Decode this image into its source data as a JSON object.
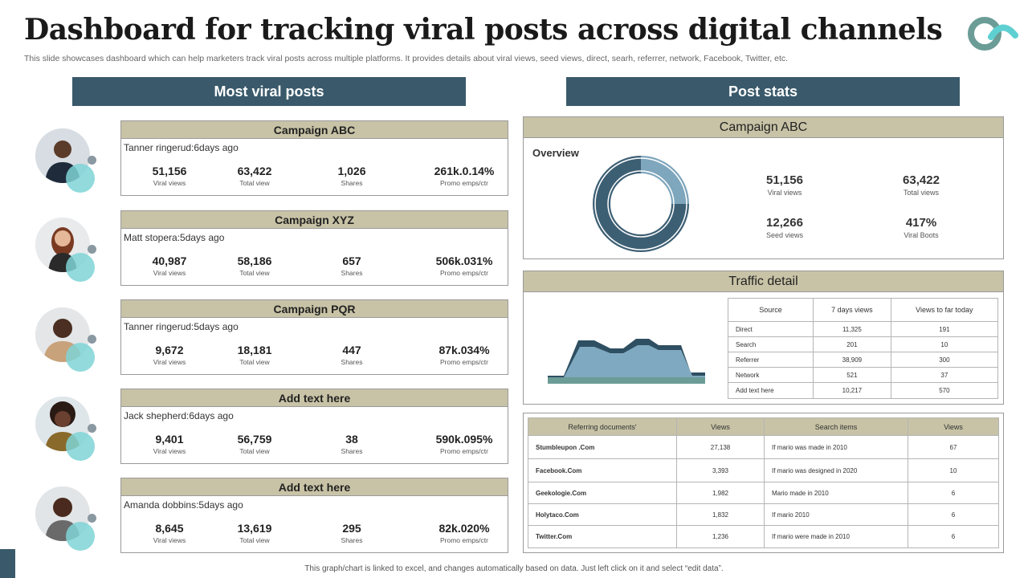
{
  "title": "Dashboard for tracking viral posts across digital channels",
  "subtitle": "This slide showcases dashboard which can help marketers track viral posts across multiple platforms. It provides details about viral views, seed views, direct, searh, referrer, network,  Facebook, Twitter, etc.",
  "colors": {
    "accent": "#3a5a6b",
    "card_header": "#c8c3a6",
    "teal": "#7fd3d6",
    "donut_dark": "#3d5f74",
    "donut_light": "#7ea6bd"
  },
  "left_section": {
    "heading": "Most viral posts"
  },
  "right_section": {
    "heading": "Post stats"
  },
  "metric_labels": [
    "Viral views",
    "Total view",
    "Shares",
    "Promo emps/ctr"
  ],
  "posts": [
    {
      "campaign": "Campaign ABC",
      "author": "Tanner ringerud:6days ago",
      "viral_views": "51,156",
      "total_view": "63,422",
      "shares": "1,026",
      "promo": "261k.0.14%"
    },
    {
      "campaign": "Campaign XYZ",
      "author": "Matt stopera:5days ago",
      "viral_views": "40,987",
      "total_view": "58,186",
      "shares": "657",
      "promo": "506k.031%"
    },
    {
      "campaign": "Campaign PQR",
      "author": "Tanner ringerud:5days ago",
      "viral_views": "9,672",
      "total_view": "18,181",
      "shares": "447",
      "promo": "87k.034%"
    },
    {
      "campaign": "Add text here",
      "author": "Jack shepherd:6days ago",
      "viral_views": "9,401",
      "total_view": "56,759",
      "shares": "38",
      "promo": "590k.095%"
    },
    {
      "campaign": "Add text here",
      "author": "Amanda dobbins:5days ago",
      "viral_views": "8,645",
      "total_view": "13,619",
      "shares": "295",
      "promo": "82k.020%"
    }
  ],
  "post_stats": {
    "campaign": "Campaign ABC",
    "overview_label": "Overview",
    "donut_split": [
      0.75,
      0.25
    ],
    "stats": [
      {
        "value": "51,156",
        "label": "Viral views"
      },
      {
        "value": "63,422",
        "label": "Total views"
      },
      {
        "value": "12,266",
        "label": "Seed views"
      },
      {
        "value": "417%",
        "label": "Viral Boots"
      }
    ]
  },
  "traffic": {
    "heading": "Traffic detail",
    "columns": [
      "Source",
      "7 days views",
      "Views to far today"
    ],
    "rows": [
      [
        "Direct",
        "11,325",
        "191"
      ],
      [
        "Search",
        "201",
        "10"
      ],
      [
        "Referrer",
        "38,909",
        "300"
      ],
      [
        "Network",
        "521",
        "37"
      ],
      [
        "Add text here",
        "10,217",
        "570"
      ]
    ]
  },
  "referring": {
    "columns": [
      "Referring documents'",
      "Views",
      "Search items",
      "Views"
    ],
    "rows": [
      [
        "Stumbleupon .Com",
        "27,138",
        "If mario was made  in 2010",
        "67"
      ],
      [
        "Facebook.Com",
        "3,393",
        "If mario was designed  in 2020",
        "10"
      ],
      [
        "Geekologie.Com",
        "1,982",
        "Mario made  in 2010",
        "6"
      ],
      [
        "Holytaco.Com",
        "1,832",
        "If mario 2010",
        "6"
      ],
      [
        "Twitter.Com",
        "1,236",
        "If mario were made  in 2010",
        "6"
      ]
    ]
  },
  "footer": "This graph/chart is linked to excel, and changes automatically based on data. Just left click on it and select “edit data”."
}
